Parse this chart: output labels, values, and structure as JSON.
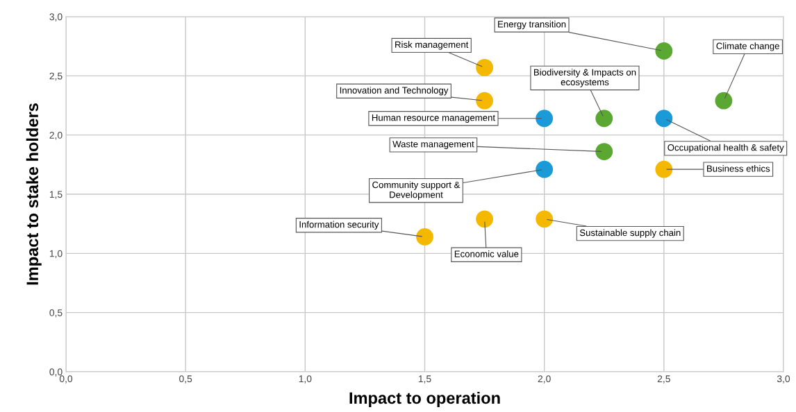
{
  "chart_data": {
    "type": "scatter",
    "xlabel": "Impact to operation",
    "ylabel": "Impact to stake holders",
    "x": [
      2.5,
      1.75,
      2.75,
      1.75,
      2.0,
      2.25,
      2.5,
      2.25,
      2.0,
      2.5,
      1.75,
      2.0,
      1.5
    ],
    "values": [
      2.71,
      2.57,
      2.29,
      2.29,
      2.14,
      2.14,
      2.14,
      1.86,
      1.71,
      1.71,
      1.29,
      1.29,
      1.14
    ],
    "colors": [
      "#5aa832",
      "#f5b800",
      "#5aa832",
      "#f5b800",
      "#1a9bd7",
      "#5aa832",
      "#1a9bd7",
      "#5aa832",
      "#1a9bd7",
      "#f5b800",
      "#f5b800",
      "#f5b800",
      "#f5b800"
    ],
    "annotations": [
      {
        "text": "Energy transition",
        "x": 2.5,
        "y": 2.71
      },
      {
        "text": "Risk management",
        "x": 1.75,
        "y": 2.57
      },
      {
        "text": "Climate change",
        "x": 2.75,
        "y": 2.29
      },
      {
        "text": "Innovation and Technology",
        "x": 1.75,
        "y": 2.29
      },
      {
        "text": "Human resource management",
        "x": 2.0,
        "y": 2.14
      },
      {
        "text": "Biodiversity & Impacts on\necosystems",
        "x": 2.25,
        "y": 2.14
      },
      {
        "text": "Occupational health & safety",
        "x": 2.5,
        "y": 2.14
      },
      {
        "text": "Waste management",
        "x": 2.25,
        "y": 1.86
      },
      {
        "text": "Community support &\nDevelopment",
        "x": 2.0,
        "y": 1.71
      },
      {
        "text": "Business ethics",
        "x": 2.5,
        "y": 1.71
      },
      {
        "text": "Economic value",
        "x": 1.75,
        "y": 1.29
      },
      {
        "text": "Sustainable supply chain",
        "x": 2.0,
        "y": 1.29
      },
      {
        "text": "Information security",
        "x": 1.5,
        "y": 1.14
      }
    ],
    "xlim": [
      0,
      3
    ],
    "ylim": [
      0,
      3
    ],
    "xticks": [
      {
        "value": 0,
        "label": "0,0"
      },
      {
        "value": 0.5,
        "label": "0,5"
      },
      {
        "value": 1,
        "label": "1,0"
      },
      {
        "value": 1.5,
        "label": "1,5"
      },
      {
        "value": 2,
        "label": "2,0"
      },
      {
        "value": 2.5,
        "label": "2,5"
      },
      {
        "value": 3,
        "label": "3,0"
      }
    ],
    "yticks": [
      {
        "value": 0,
        "label": "0,0"
      },
      {
        "value": 0.5,
        "label": "0,5"
      },
      {
        "value": 1,
        "label": "1,0"
      },
      {
        "value": 1.5,
        "label": "1,5"
      },
      {
        "value": 2,
        "label": "2,0"
      },
      {
        "value": 2.5,
        "label": "2,5"
      },
      {
        "value": 3,
        "label": "3,0"
      }
    ],
    "grid": true,
    "marker": "circle",
    "legend": false
  }
}
